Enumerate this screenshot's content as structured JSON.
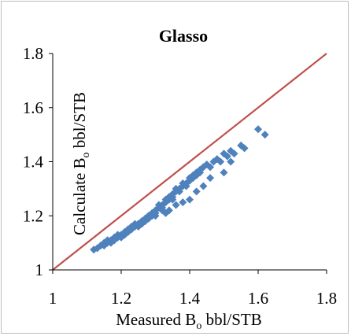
{
  "chart_data": {
    "type": "scatter",
    "title": "Glasso",
    "xlabel": {
      "main": "Measured B",
      "sub": "o",
      "rest": " bbl/STB"
    },
    "ylabel": {
      "main": "Calculate B",
      "sub": "o",
      "rest": " bbl/STB"
    },
    "xlim": [
      1,
      1.8
    ],
    "ylim": [
      1,
      1.8
    ],
    "xticks": [
      "1",
      "1.2",
      "1.4",
      "1.6",
      "1.8"
    ],
    "yticks": [
      "1",
      "1.2",
      "1.4",
      "1.6",
      "1.8"
    ],
    "grid": false,
    "legend": "none",
    "marker": "diamond",
    "colors": {
      "points": "#4f81bd",
      "reference_line": "#c0504d",
      "axis": "#000000"
    },
    "reference_line": {
      "x": [
        1,
        1.8
      ],
      "y": [
        1,
        1.8
      ]
    },
    "series": [
      {
        "x": [
          1.12,
          1.13,
          1.14,
          1.15,
          1.15,
          1.16,
          1.16,
          1.17,
          1.17,
          1.18,
          1.18,
          1.19,
          1.19,
          1.2,
          1.2,
          1.21,
          1.21,
          1.22,
          1.22,
          1.23,
          1.23,
          1.24,
          1.24,
          1.25,
          1.25,
          1.26,
          1.26,
          1.27,
          1.27,
          1.28,
          1.28,
          1.29,
          1.29,
          1.3,
          1.3,
          1.31,
          1.31,
          1.32,
          1.32,
          1.33,
          1.33,
          1.34,
          1.34,
          1.35,
          1.35,
          1.36,
          1.36,
          1.37,
          1.37,
          1.38,
          1.38,
          1.39,
          1.39,
          1.4,
          1.4,
          1.41,
          1.41,
          1.42,
          1.42,
          1.43,
          1.43,
          1.44,
          1.45,
          1.46,
          1.47,
          1.48,
          1.49,
          1.5,
          1.51,
          1.52,
          1.53,
          1.55,
          1.56,
          1.6,
          1.62,
          1.33,
          1.34,
          1.36,
          1.38,
          1.4,
          1.42,
          1.44,
          1.5,
          1.32,
          1.28,
          1.25,
          1.22,
          1.3,
          1.35,
          1.46,
          1.52
        ],
        "y": [
          1.075,
          1.08,
          1.09,
          1.09,
          1.1,
          1.1,
          1.11,
          1.1,
          1.11,
          1.12,
          1.11,
          1.12,
          1.13,
          1.13,
          1.12,
          1.14,
          1.13,
          1.15,
          1.14,
          1.15,
          1.16,
          1.16,
          1.17,
          1.17,
          1.16,
          1.18,
          1.17,
          1.19,
          1.18,
          1.2,
          1.19,
          1.21,
          1.2,
          1.22,
          1.21,
          1.23,
          1.24,
          1.24,
          1.23,
          1.25,
          1.26,
          1.26,
          1.27,
          1.28,
          1.27,
          1.29,
          1.3,
          1.3,
          1.29,
          1.31,
          1.32,
          1.32,
          1.31,
          1.33,
          1.34,
          1.34,
          1.35,
          1.36,
          1.35,
          1.37,
          1.36,
          1.38,
          1.39,
          1.38,
          1.4,
          1.41,
          1.4,
          1.43,
          1.42,
          1.44,
          1.43,
          1.46,
          1.45,
          1.52,
          1.5,
          1.21,
          1.22,
          1.24,
          1.25,
          1.26,
          1.29,
          1.31,
          1.36,
          1.22,
          1.2,
          1.17,
          1.15,
          1.2,
          1.26,
          1.34,
          1.4
        ]
      }
    ]
  }
}
